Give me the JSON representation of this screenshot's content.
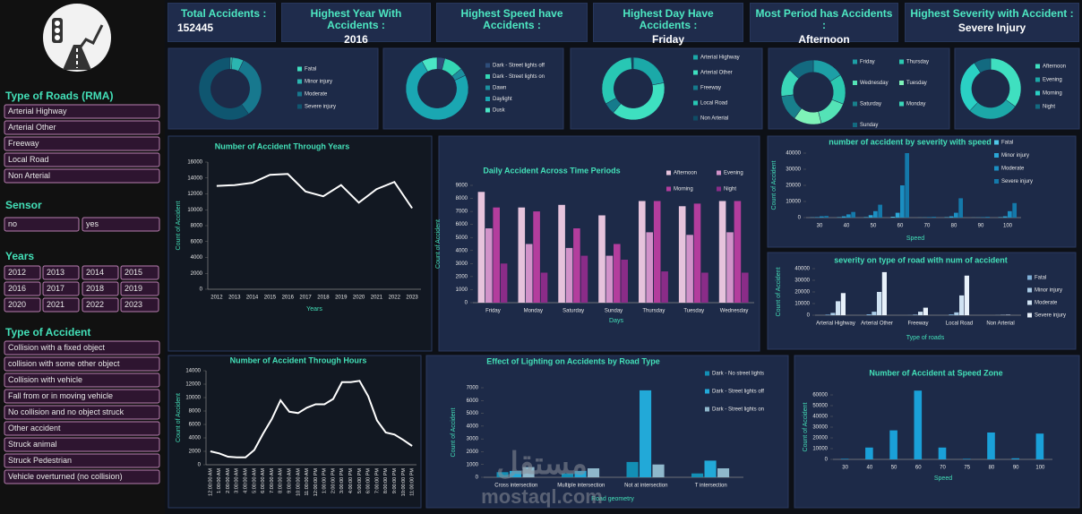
{
  "sidebar": {
    "filters": [
      {
        "title": "Type of Roads (RMA)",
        "items": [
          "Arterial Highway",
          "Arterial Other",
          "Freeway",
          "Local Road",
          "Non Arterial"
        ]
      },
      {
        "title": "Sensor",
        "items": [
          "no",
          "yes"
        ]
      },
      {
        "title": "Years",
        "items": [
          "2012",
          "2013",
          "2014",
          "2015",
          "2016",
          "2017",
          "2018",
          "2019",
          "2020",
          "2021",
          "2022",
          "2023"
        ]
      },
      {
        "title": "Type of Accident",
        "items": [
          "Collision with a fixed object",
          "collision with some other object",
          "Collision with vehicle",
          "Fall from or in moving vehicle",
          "No collision and no object struck",
          "Other accident",
          "Struck animal",
          "Struck Pedestrian",
          "Vehicle overturned (no collision)"
        ]
      }
    ]
  },
  "kpis": [
    {
      "label": "Total Accidents :",
      "value": 152445
    },
    {
      "label": "Highest Year With Accidents :",
      "value": 2016
    },
    {
      "label": "Highest Speed have Accidents :"
    },
    {
      "label": "Highest Day Have Accidents :",
      "value": "Friday"
    },
    {
      "label": "Most Period has Accidents :",
      "value": "Afternoon"
    },
    {
      "label": "Highest Severity with Accident :",
      "value": "Severe Injury"
    }
  ],
  "watermark": {
    "logo": "مستقل",
    "url": "mostaql.com"
  },
  "chart_data": [
    {
      "type": "donut",
      "categories": [
        "Fatal",
        "Minor injury",
        "Moderate",
        "Severe injury"
      ],
      "values": [
        1,
        6,
        33,
        60
      ],
      "colors": [
        "#3fe0c0",
        "#2bb5b0",
        "#17788e",
        "#0f5670"
      ]
    },
    {
      "type": "donut",
      "categories": [
        "Dark - Street lights off",
        "Dark - Street lights on",
        "Dawn",
        "Daylight",
        "Dusk"
      ],
      "values": [
        4,
        10,
        4,
        74,
        8
      ],
      "colors": [
        "#2e4d7a",
        "#34d6b4",
        "#1c8f9e",
        "#1aa7b2",
        "#4ae6c6"
      ]
    },
    {
      "type": "donut",
      "categories": [
        "Arterial Highway",
        "Arterial Other",
        "Freeway",
        "Local Road",
        "Non Arterial"
      ],
      "values": [
        22,
        39,
        6,
        32,
        1
      ],
      "colors": [
        "#1ba9a8",
        "#3ee0c0",
        "#157b8c",
        "#28c7b4",
        "#0f4d66"
      ]
    },
    {
      "type": "donut",
      "categories": [
        "Friday",
        "Thursday",
        "Wednesday",
        "Tuesday",
        "Saturday",
        "Monday",
        "Sunday"
      ],
      "values": [
        16,
        15,
        15,
        14,
        13,
        14,
        13
      ],
      "colors": [
        "#1d9fa6",
        "#2bc9b0",
        "#54e3b6",
        "#7ef2b8",
        "#18808c",
        "#3ad6b8",
        "#136a80"
      ]
    },
    {
      "type": "donut",
      "categories": [
        "Afternoon",
        "Evening",
        "Morning",
        "Night"
      ],
      "values": [
        35,
        27,
        29,
        9
      ],
      "colors": [
        "#3fe0c0",
        "#1ca8a8",
        "#2ad0c4",
        "#136a80"
      ]
    },
    {
      "type": "line",
      "title": "Number of Accident Through Years",
      "x_label": "Years",
      "y_label": "Count of Accident",
      "categories": [
        "2012",
        "2013",
        "2014",
        "2015",
        "2016",
        "2017",
        "2018",
        "2019",
        "2020",
        "2021",
        "2022",
        "2023"
      ],
      "values": [
        13000,
        13100,
        13400,
        14400,
        14500,
        12300,
        11700,
        13100,
        10900,
        12600,
        13500,
        10200
      ],
      "color": "#ffffff",
      "ylim": [
        0,
        16000
      ],
      "yticks": [
        0,
        2000,
        4000,
        6000,
        8000,
        10000,
        12000,
        14000,
        16000
      ]
    },
    {
      "type": "bar",
      "title": "Daily Accident Across Time Periods",
      "x_label": "Days",
      "y_label": "Count of Accident",
      "categories": [
        "Friday",
        "Monday",
        "Saturday",
        "Sunday",
        "Thursday",
        "Tuesday",
        "Wednesday"
      ],
      "series": [
        {
          "name": "Afternoon",
          "color": "#e6c3dc",
          "values": [
            8500,
            7300,
            7500,
            6700,
            7800,
            7400,
            7800
          ]
        },
        {
          "name": "Evening",
          "color": "#d192c9",
          "values": [
            5700,
            4500,
            4200,
            3600,
            5400,
            5200,
            5400
          ]
        },
        {
          "name": "Morning",
          "color": "#b33d9d",
          "values": [
            7300,
            7000,
            5700,
            4500,
            7800,
            7600,
            7800
          ]
        },
        {
          "name": "Night",
          "color": "#8a2c88",
          "values": [
            3000,
            2300,
            3600,
            3300,
            2400,
            2300,
            2300
          ]
        }
      ],
      "ylim": [
        0,
        9000
      ],
      "yticks": [
        0,
        1000,
        2000,
        3000,
        4000,
        5000,
        6000,
        7000,
        8000,
        9000
      ]
    },
    {
      "type": "bar",
      "title": "number of accident by severity with speed",
      "x_label": "Speed",
      "y_label": "Count of Accident",
      "categories": [
        "30",
        "40",
        "50",
        "60",
        "70",
        "80",
        "90",
        "100"
      ],
      "series": [
        {
          "name": "Fatal",
          "color": "#4fc7e8",
          "values": [
            100,
            200,
            300,
            500,
            50,
            200,
            50,
            200
          ]
        },
        {
          "name": "Minor injury",
          "color": "#2aa6d6",
          "values": [
            300,
            800,
            1500,
            3000,
            100,
            800,
            100,
            800
          ]
        },
        {
          "name": "Moderate",
          "color": "#1b8fc2",
          "values": [
            800,
            2000,
            4000,
            20000,
            300,
            3000,
            200,
            4000
          ]
        },
        {
          "name": "Severe injury",
          "color": "#1479aa",
          "values": [
            1000,
            3500,
            8000,
            40000,
            500,
            12000,
            500,
            9000
          ]
        }
      ],
      "ylim": [
        0,
        40000
      ],
      "yticks": [
        0,
        10000,
        20000,
        30000,
        40000
      ]
    },
    {
      "type": "bar",
      "title": "severity on type of road with num of accident",
      "x_label": "Type of roads",
      "y_label": "Count of Accident",
      "categories": [
        "Arterial Highway",
        "Arterial Other",
        "Freeway",
        "Local Road",
        "Non Arterial"
      ],
      "series": [
        {
          "name": "Fatal",
          "color": "#7fb0d8",
          "values": [
            500,
            800,
            100,
            700,
            20
          ]
        },
        {
          "name": "Minor injury",
          "color": "#a9cbe6",
          "values": [
            2000,
            3000,
            500,
            2500,
            50
          ]
        },
        {
          "name": "Moderate",
          "color": "#cfe2f2",
          "values": [
            12000,
            20000,
            3000,
            17000,
            200
          ]
        },
        {
          "name": "Severe injury",
          "color": "#e8f1fa",
          "values": [
            19000,
            37000,
            6500,
            34000,
            400
          ]
        }
      ],
      "ylim": [
        0,
        40000
      ],
      "yticks": [
        0,
        10000,
        20000,
        30000,
        40000
      ]
    },
    {
      "type": "line",
      "title": "Number of Accident Through Hours",
      "y_label": "Count of Accident",
      "categories": [
        "12:00:00 AM",
        "1:00:00 AM",
        "2:00:00 AM",
        "3:00:00 AM",
        "4:00:00 AM",
        "5:00:00 AM",
        "6:00:00 AM",
        "7:00:00 AM",
        "8:00:00 AM",
        "9:00:00 AM",
        "10:00:00 AM",
        "11:00:00 AM",
        "12:00:00 PM",
        "1:00:00 PM",
        "2:00:00 PM",
        "3:00:00 PM",
        "4:00:00 PM",
        "5:00:00 PM",
        "6:00:00 PM",
        "7:00:00 PM",
        "8:00:00 PM",
        "9:00:00 PM",
        "10:00:00 PM",
        "11:00:00 PM"
      ],
      "values": [
        2000,
        1700,
        1200,
        1100,
        1100,
        2200,
        4600,
        6800,
        9600,
        7900,
        7700,
        8500,
        9000,
        9000,
        9800,
        12300,
        12300,
        12500,
        10200,
        6600,
        4800,
        4500,
        3700,
        2800
      ],
      "color": "#ffffff",
      "ylim": [
        0,
        14000
      ],
      "yticks": [
        0,
        2000,
        4000,
        6000,
        8000,
        10000,
        12000,
        14000
      ]
    },
    {
      "type": "bar",
      "title": "Effect of Lighting on  Accidents by Road Type",
      "x_label": "Road geometry",
      "y_label": "Count of Accident",
      "categories": [
        "Cross intersection",
        "Multiple intersection",
        "Not at intersection",
        "T intersection"
      ],
      "series": [
        {
          "name": "Dark - No street lights",
          "color": "#138fb5",
          "values": [
            400,
            300,
            1200,
            300
          ]
        },
        {
          "name": "Dark - Street lights off",
          "color": "#22a9d8",
          "values": [
            500,
            500,
            6800,
            1300
          ]
        },
        {
          "name": "Dark - Street lights on",
          "color": "#8fb8cc",
          "values": [
            800,
            700,
            1000,
            700
          ]
        }
      ],
      "ylim": [
        0,
        7000
      ],
      "yticks": [
        0,
        1000,
        2000,
        3000,
        4000,
        5000,
        6000,
        7000
      ]
    },
    {
      "type": "bar",
      "title": "Number of Accident at Speed Zone",
      "x_label": "Speed",
      "y_label": "Count of Accident",
      "categories": [
        "30",
        "40",
        "50",
        "60",
        "70",
        "75",
        "80",
        "90",
        "100"
      ],
      "series": [
        {
          "name": "Count",
          "color": "#1aa0d8",
          "values": [
            500,
            11000,
            27000,
            64000,
            11000,
            500,
            25000,
            1000,
            24000
          ]
        }
      ],
      "ylim": [
        0,
        60000
      ],
      "yticks": [
        0,
        10000,
        20000,
        30000,
        40000,
        50000,
        60000
      ],
      "legend": false
    }
  ]
}
